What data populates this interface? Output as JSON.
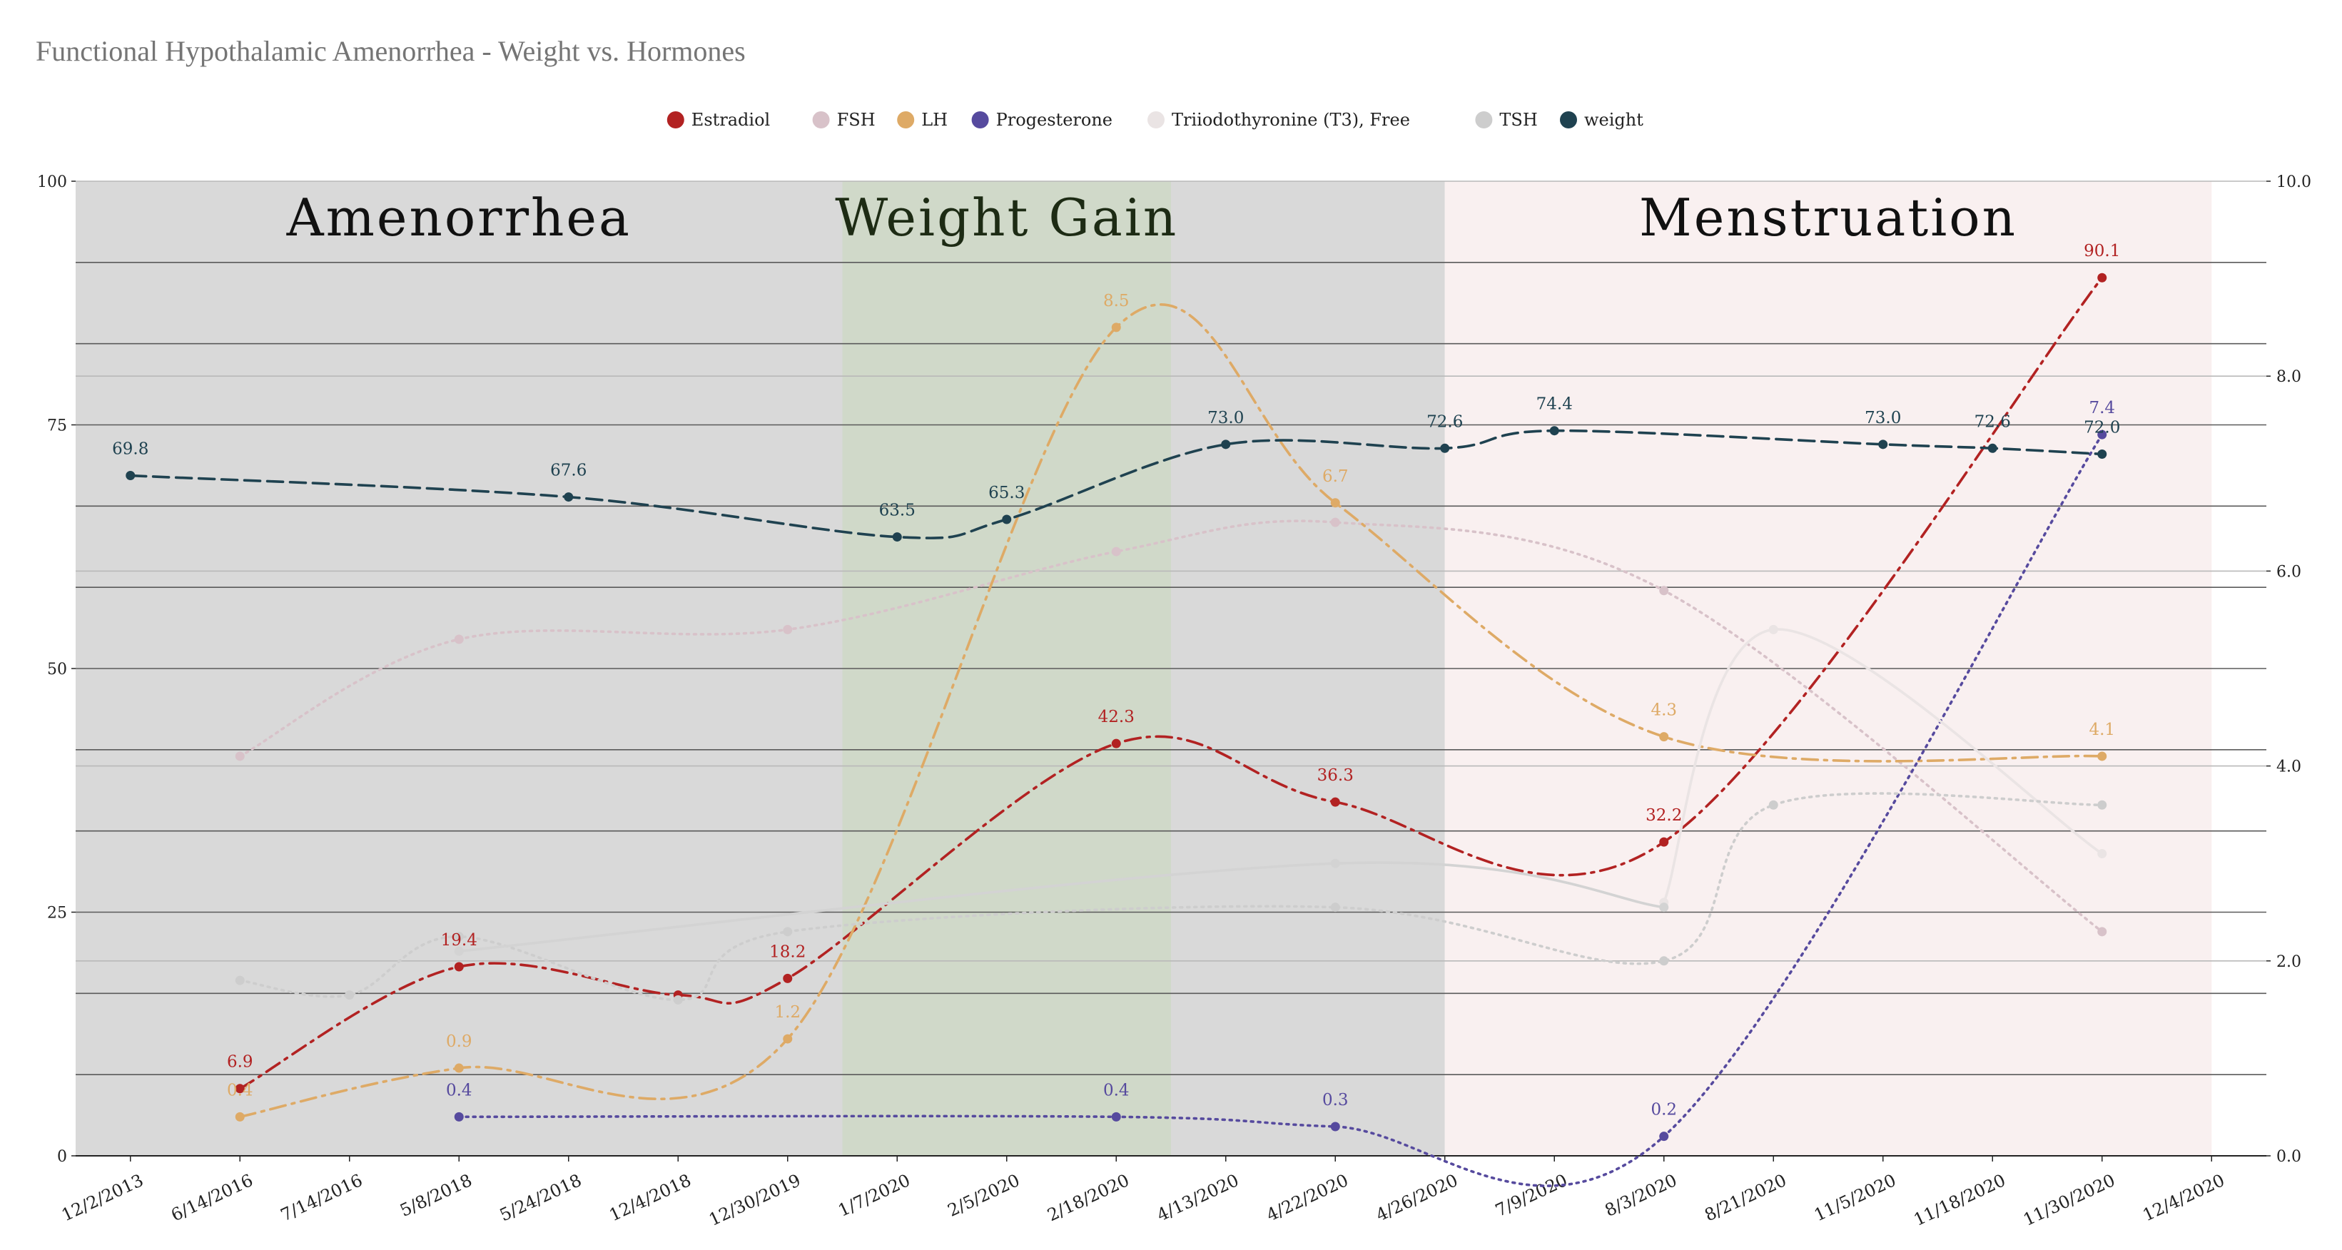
{
  "chart_data": {
    "type": "line",
    "title": "Functional Hypothalamic Amenorrhea - Weight vs. Hormones",
    "categories": [
      "12/2/2013",
      "6/14/2016",
      "7/14/2016",
      "5/8/2018",
      "5/24/2018",
      "12/4/2018",
      "12/30/2019",
      "1/7/2020",
      "2/5/2020",
      "2/18/2020",
      "4/13/2020",
      "4/22/2020",
      "4/26/2020",
      "7/9/2020",
      "8/3/2020",
      "8/21/2020",
      "11/5/2020",
      "11/18/2020",
      "11/30/2020",
      "12/4/2020"
    ],
    "y_left": {
      "range": [
        0,
        100
      ],
      "ticks": [
        "0",
        "25",
        "50",
        "75",
        "100"
      ]
    },
    "y_right": {
      "range": [
        0,
        10
      ],
      "ticks": [
        "0.0",
        "2.0",
        "4.0",
        "6.0",
        "8.0",
        "10.0"
      ]
    },
    "grid": true,
    "legend_position": "top-center",
    "regions": [
      {
        "label": "Amenorrhea",
        "from": 0,
        "to": 7,
        "color": "#d9d9d9",
        "text_color": "#111111"
      },
      {
        "label": "Weight Gain",
        "from": 7,
        "to": 10,
        "color": "#d0d9c9",
        "text_color": "#1d2b14"
      },
      {
        "label": "",
        "from": 10,
        "to": 12.5,
        "color": "#d9d9d9",
        "text_color": "#111111"
      },
      {
        "label": "Menstruation",
        "from": 12.5,
        "to": 19.5,
        "color": "#f9f0f0",
        "text_color": "#111111"
      }
    ],
    "series": [
      {
        "name": "Estradiol",
        "color": "#b22222",
        "axis": "left",
        "dash": "dashdot",
        "points": [
          [
            1,
            6.9
          ],
          [
            3,
            19.4
          ],
          [
            5,
            16.5
          ],
          [
            6,
            18.2
          ],
          [
            9,
            42.3
          ],
          [
            11,
            36.3
          ],
          [
            14,
            32.2
          ],
          [
            18,
            90.1
          ]
        ],
        "labels": [
          [
            1,
            "6.9"
          ],
          [
            3,
            "19.4"
          ],
          [
            6,
            "18.2"
          ],
          [
            9,
            "42.3"
          ],
          [
            11,
            "36.3"
          ],
          [
            14,
            "32.2"
          ],
          [
            18,
            "90.1"
          ]
        ]
      },
      {
        "name": "FSH",
        "color": "#d8c2c9",
        "axis": "left",
        "dash": "dotted",
        "points": [
          [
            1,
            41
          ],
          [
            3,
            53
          ],
          [
            6,
            54
          ],
          [
            9,
            62
          ],
          [
            11,
            65
          ],
          [
            14,
            58
          ],
          [
            18,
            23
          ]
        ],
        "labels": []
      },
      {
        "name": "LH",
        "color": "#deaa66",
        "axis": "right",
        "dash": "dashdot",
        "points": [
          [
            1,
            0.4
          ],
          [
            3,
            0.9
          ],
          [
            6,
            1.2
          ],
          [
            9,
            8.5
          ],
          [
            11,
            6.7
          ],
          [
            14,
            4.3
          ],
          [
            18,
            4.1
          ]
        ],
        "labels": [
          [
            1,
            "0.4"
          ],
          [
            3,
            "0.9"
          ],
          [
            6,
            "1.2"
          ],
          [
            9,
            "8.5"
          ],
          [
            11,
            "6.7"
          ],
          [
            14,
            "4.3"
          ],
          [
            18,
            "4.1"
          ]
        ]
      },
      {
        "name": "Progesterone",
        "color": "#564a9e",
        "axis": "right",
        "dash": "dotted",
        "points": [
          [
            3,
            0.4
          ],
          [
            9,
            0.4
          ],
          [
            11,
            0.3
          ],
          [
            14,
            0.2
          ],
          [
            18,
            7.4
          ]
        ],
        "labels": [
          [
            3,
            "0.4"
          ],
          [
            9,
            "0.4"
          ],
          [
            11,
            "0.3"
          ],
          [
            14,
            "0.2"
          ],
          [
            18,
            "7.4"
          ]
        ]
      },
      {
        "name": "Triiodothyronine (T3), Free",
        "color": "#eae4e4",
        "axis": "left",
        "dash": "solid",
        "points": [
          [
            14,
            26
          ],
          [
            15,
            54
          ],
          [
            18,
            31
          ]
        ],
        "labels": []
      },
      {
        "name": "TSH",
        "color": "#cdcdcd",
        "axis": "left",
        "dash": "dotted",
        "points": [
          [
            1,
            18
          ],
          [
            2,
            16.5
          ],
          [
            3,
            22.5
          ],
          [
            5,
            16
          ],
          [
            6,
            23
          ],
          [
            11,
            25.5
          ],
          [
            14,
            20
          ],
          [
            15,
            36
          ],
          [
            18,
            36
          ]
        ],
        "labels": []
      },
      {
        "name": "TSH (solid)",
        "legend": false,
        "color": "#d3d3d3",
        "axis": "left",
        "dash": "solid",
        "points": [
          [
            3,
            21
          ],
          [
            11,
            30
          ],
          [
            14,
            25.5
          ]
        ],
        "labels": []
      },
      {
        "name": "weight",
        "color": "#1f4250",
        "axis": "left",
        "dash": "dashed",
        "points": [
          [
            0,
            69.8
          ],
          [
            4,
            67.6
          ],
          [
            7,
            63.5
          ],
          [
            8,
            65.3
          ],
          [
            10,
            73.0
          ],
          [
            12,
            72.6
          ],
          [
            13,
            74.4
          ],
          [
            16,
            73.0
          ],
          [
            17,
            72.6
          ],
          [
            18,
            72.0
          ]
        ],
        "labels": [
          [
            0,
            "69.8"
          ],
          [
            4,
            "67.6"
          ],
          [
            7,
            "63.5"
          ],
          [
            8,
            "65.3"
          ],
          [
            10,
            "73.0"
          ],
          [
            12,
            "72.6"
          ],
          [
            13,
            "74.4"
          ],
          [
            16,
            "73.0"
          ],
          [
            17,
            "72.6"
          ],
          [
            18,
            "72.0"
          ]
        ]
      }
    ]
  }
}
